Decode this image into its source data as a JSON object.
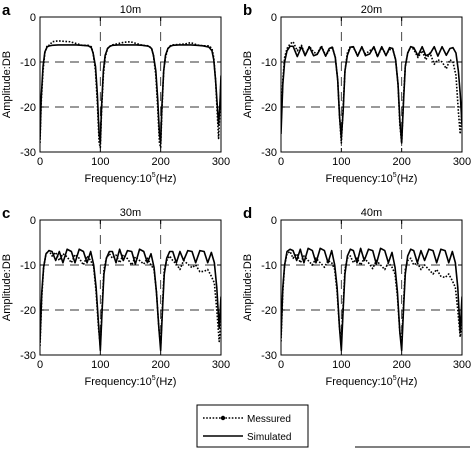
{
  "legend": {
    "items": [
      {
        "label": "Messured",
        "style": "dotted-marker"
      },
      {
        "label": "Simulated",
        "style": "solid"
      }
    ]
  },
  "chart_data": [
    {
      "panel": "a",
      "title": "10m",
      "type": "line",
      "xlabel": "Frequency:10^5(Hz)",
      "ylabel": "Amplitude:DB",
      "xlim": [
        0,
        300
      ],
      "ylim": [
        -30,
        0
      ],
      "xticks": [
        0,
        100,
        200,
        300
      ],
      "yticks": [
        -30,
        -20,
        -10,
        0
      ],
      "dashed_hlines": [
        -10,
        -20
      ],
      "dashed_vlines": [
        100,
        200
      ],
      "series": [
        {
          "name": "Messured",
          "x": [
            0,
            2,
            5,
            8,
            12,
            16,
            20,
            30,
            40,
            50,
            60,
            70,
            80,
            85,
            88,
            92,
            95,
            98,
            100,
            102,
            105,
            108,
            112,
            116,
            120,
            130,
            140,
            150,
            160,
            170,
            180,
            185,
            188,
            192,
            195,
            198,
            200,
            202,
            205,
            208,
            212,
            216,
            220,
            230,
            240,
            250,
            260,
            270,
            280,
            285,
            288,
            291,
            294,
            296,
            298,
            300
          ],
          "y": [
            -28,
            -19,
            -12,
            -8,
            -6.3,
            -6.3,
            -5.5,
            -5.3,
            -5.4,
            -5.5,
            -5.9,
            -6.3,
            -6.3,
            -6.6,
            -8,
            -12,
            -19,
            -28,
            -29,
            -21,
            -13,
            -9,
            -7,
            -6.5,
            -6.2,
            -5.9,
            -5.6,
            -5.5,
            -5.9,
            -6.3,
            -6.4,
            -7,
            -8.5,
            -13,
            -20,
            -28,
            -29,
            -21,
            -12,
            -9,
            -7,
            -6.4,
            -6.2,
            -6.1,
            -6,
            -5.7,
            -6.2,
            -6.4,
            -6.4,
            -7,
            -9,
            -14,
            -22,
            -27,
            -21,
            -14
          ]
        },
        {
          "name": "Simulated",
          "x": [
            0,
            2,
            5,
            8,
            12,
            16,
            20,
            30,
            40,
            50,
            60,
            70,
            80,
            85,
            88,
            92,
            95,
            98,
            100,
            102,
            105,
            108,
            112,
            116,
            120,
            130,
            140,
            150,
            160,
            170,
            180,
            185,
            188,
            192,
            195,
            198,
            200,
            202,
            205,
            208,
            212,
            216,
            220,
            230,
            240,
            250,
            260,
            270,
            280,
            285,
            288,
            291,
            294,
            296,
            298,
            300
          ],
          "y": [
            -27,
            -18,
            -11,
            -7.8,
            -6.6,
            -6.4,
            -6.3,
            -6.2,
            -6.2,
            -6.2,
            -6.2,
            -6.3,
            -6.4,
            -6.8,
            -8,
            -11,
            -17,
            -26,
            -28,
            -20,
            -12,
            -8.5,
            -7,
            -6.5,
            -6.3,
            -6.2,
            -6.2,
            -6.2,
            -6.2,
            -6.3,
            -6.5,
            -7,
            -8.5,
            -12,
            -18,
            -26,
            -28,
            -20,
            -12,
            -8.5,
            -7,
            -6.5,
            -6.3,
            -6.2,
            -6.2,
            -6.2,
            -6.3,
            -6.4,
            -6.7,
            -7.5,
            -9.5,
            -14,
            -20,
            -24,
            -20,
            -13
          ]
        }
      ]
    },
    {
      "panel": "b",
      "title": "20m",
      "type": "line",
      "xlabel": "Frequency:10^5(Hz)",
      "ylabel": "Amplitude:DB",
      "xlim": [
        0,
        300
      ],
      "ylim": [
        -30,
        0
      ],
      "xticks": [
        0,
        100,
        200,
        300
      ],
      "yticks": [
        -30,
        -20,
        -10,
        0
      ],
      "dashed_hlines": [
        -10,
        -20
      ],
      "dashed_vlines": [
        100,
        200
      ],
      "series": [
        {
          "name": "Messured",
          "x": [
            0,
            3,
            6,
            10,
            15,
            20,
            27,
            34,
            40,
            47,
            54,
            60,
            67,
            74,
            80,
            85,
            90,
            94,
            97,
            100,
            103,
            106,
            110,
            115,
            120,
            127,
            134,
            140,
            147,
            154,
            160,
            167,
            174,
            180,
            185,
            190,
            194,
            197,
            200,
            203,
            206,
            210,
            215,
            220,
            227,
            234,
            240,
            247,
            254,
            260,
            267,
            274,
            280,
            285,
            290,
            294,
            297,
            300
          ],
          "y": [
            -24,
            -14,
            -9,
            -7,
            -6,
            -5.5,
            -7.5,
            -6.3,
            -8.5,
            -6.5,
            -7.8,
            -8.2,
            -6.4,
            -8.6,
            -7.4,
            -6.6,
            -9,
            -14,
            -22,
            -28,
            -20,
            -12,
            -8,
            -6.5,
            -6.8,
            -8.5,
            -6.8,
            -8.2,
            -7.5,
            -6.8,
            -8.8,
            -6.8,
            -8.3,
            -7.3,
            -7,
            -9.5,
            -15,
            -24,
            -28,
            -18,
            -11,
            -8,
            -6.6,
            -7.2,
            -9,
            -7.5,
            -9.5,
            -8,
            -10.5,
            -9.5,
            -10,
            -11.5,
            -9.5,
            -10,
            -13,
            -21,
            -26,
            -20
          ]
        },
        {
          "name": "Simulated",
          "x": [
            0,
            3,
            6,
            10,
            15,
            20,
            27,
            34,
            40,
            47,
            54,
            60,
            67,
            74,
            80,
            85,
            90,
            94,
            97,
            100,
            103,
            106,
            110,
            115,
            120,
            127,
            134,
            140,
            147,
            154,
            160,
            167,
            174,
            180,
            185,
            190,
            194,
            197,
            200,
            203,
            206,
            210,
            215,
            220,
            227,
            234,
            240,
            247,
            254,
            260,
            267,
            274,
            280,
            285,
            290,
            294,
            297,
            300
          ],
          "y": [
            -26,
            -15,
            -10,
            -7.5,
            -6.5,
            -6.5,
            -8.8,
            -6.6,
            -8.6,
            -6.6,
            -8.6,
            -8.3,
            -6.6,
            -8.7,
            -7,
            -6.7,
            -9,
            -14,
            -22,
            -27,
            -21,
            -12,
            -8.5,
            -6.7,
            -6.6,
            -8.7,
            -6.6,
            -8.6,
            -8.2,
            -6.6,
            -8.8,
            -6.6,
            -8.6,
            -6.8,
            -7,
            -9.5,
            -15,
            -23,
            -28,
            -19,
            -11,
            -8,
            -6.6,
            -6.8,
            -8.6,
            -6.6,
            -8.6,
            -8.2,
            -6.6,
            -8.7,
            -6.6,
            -8.5,
            -7,
            -6.8,
            -8,
            -12,
            -17,
            -24
          ]
        }
      ]
    },
    {
      "panel": "c",
      "title": "30m",
      "type": "line",
      "xlabel": "Frequency:10^5(Hz)",
      "ylabel": "Amplitude:DB",
      "xlim": [
        0,
        300
      ],
      "ylim": [
        -30,
        0
      ],
      "xticks": [
        0,
        100,
        200,
        300
      ],
      "yticks": [
        -30,
        -20,
        -10,
        0
      ],
      "dashed_hlines": [
        -10,
        -20
      ],
      "dashed_vlines": [
        100,
        200
      ],
      "series": [
        {
          "name": "Messured",
          "x": [
            0,
            3,
            6,
            10,
            15,
            20,
            26,
            32,
            38,
            45,
            52,
            58,
            65,
            72,
            78,
            84,
            89,
            93,
            97,
            100,
            103,
            106,
            110,
            115,
            120,
            126,
            132,
            138,
            145,
            152,
            158,
            165,
            172,
            178,
            184,
            189,
            193,
            197,
            200,
            203,
            206,
            210,
            215,
            220,
            226,
            232,
            238,
            245,
            252,
            258,
            265,
            272,
            278,
            284,
            289,
            293,
            297,
            300
          ],
          "y": [
            -28,
            -17,
            -10.5,
            -7.5,
            -6.8,
            -8,
            -7.2,
            -9,
            -7.5,
            -8.2,
            -9.5,
            -7.7,
            -8.5,
            -10,
            -8,
            -9,
            -10.5,
            -16,
            -24,
            -28,
            -19,
            -11,
            -8.5,
            -7.5,
            -8.5,
            -7.8,
            -9.5,
            -7.7,
            -8.6,
            -10,
            -8.2,
            -9,
            -9.8,
            -8.5,
            -10,
            -11,
            -16,
            -24,
            -28,
            -19,
            -11,
            -9,
            -8,
            -9,
            -9.8,
            -11,
            -9,
            -9.8,
            -10.6,
            -10,
            -11.5,
            -11.4,
            -11,
            -12.5,
            -14,
            -20,
            -27,
            -22
          ]
        },
        {
          "name": "Simulated",
          "x": [
            0,
            3,
            6,
            10,
            15,
            20,
            26,
            32,
            38,
            45,
            52,
            58,
            65,
            72,
            78,
            84,
            89,
            93,
            97,
            100,
            103,
            106,
            110,
            115,
            120,
            126,
            132,
            138,
            145,
            152,
            158,
            165,
            172,
            178,
            184,
            189,
            193,
            197,
            200,
            203,
            206,
            210,
            215,
            220,
            226,
            232,
            238,
            245,
            252,
            258,
            265,
            272,
            278,
            284,
            289,
            293,
            297,
            300
          ],
          "y": [
            -27,
            -16,
            -10.5,
            -7.5,
            -6.8,
            -7,
            -9,
            -7,
            -9.5,
            -6.5,
            -7,
            -9.5,
            -6.5,
            -7,
            -9.5,
            -7,
            -10,
            -15,
            -23,
            -29,
            -20,
            -12,
            -8.5,
            -7,
            -7,
            -9.5,
            -6.5,
            -9,
            -6.8,
            -7,
            -9.8,
            -6.5,
            -7,
            -9.5,
            -7.5,
            -10.5,
            -16,
            -24,
            -29,
            -20,
            -12,
            -8.5,
            -7,
            -7,
            -9.5,
            -7,
            -9,
            -6.8,
            -7,
            -9.5,
            -6.8,
            -7,
            -9.5,
            -7.2,
            -9.5,
            -15,
            -24,
            -17
          ]
        }
      ]
    },
    {
      "panel": "d",
      "title": "40m",
      "type": "line",
      "xlabel": "Frequency:10^5(Hz)",
      "ylabel": "Amplitude:DB",
      "xlim": [
        0,
        300
      ],
      "ylim": [
        -30,
        0
      ],
      "xticks": [
        0,
        100,
        200,
        300
      ],
      "yticks": [
        -30,
        -20,
        -10,
        0
      ],
      "dashed_hlines": [
        -10,
        -20
      ],
      "dashed_vlines": [
        100,
        200
      ],
      "series": [
        {
          "name": "Messured",
          "x": [
            0,
            3,
            6,
            10,
            15,
            20,
            26,
            32,
            38,
            45,
            52,
            58,
            65,
            72,
            78,
            84,
            89,
            93,
            97,
            100,
            103,
            106,
            110,
            115,
            120,
            126,
            132,
            138,
            145,
            152,
            158,
            165,
            172,
            178,
            184,
            189,
            193,
            197,
            200,
            203,
            206,
            210,
            215,
            220,
            226,
            232,
            238,
            245,
            252,
            258,
            265,
            272,
            278,
            284,
            289,
            293,
            297,
            300
          ],
          "y": [
            -27,
            -16,
            -10,
            -7.5,
            -7,
            -8.5,
            -7.5,
            -9.5,
            -8,
            -9,
            -10,
            -8.5,
            -9.5,
            -10.5,
            -9,
            -9.5,
            -11,
            -16,
            -24,
            -27,
            -19,
            -11,
            -8.5,
            -8,
            -9.5,
            -8.5,
            -10,
            -8.5,
            -9.5,
            -10.8,
            -9,
            -10,
            -11,
            -9.5,
            -10.5,
            -12,
            -17,
            -25,
            -27,
            -19,
            -11,
            -9,
            -8.5,
            -10,
            -9.5,
            -11,
            -10,
            -11,
            -12,
            -11,
            -12.5,
            -12.8,
            -12,
            -13.5,
            -15,
            -20,
            -26,
            -22
          ]
        },
        {
          "name": "Simulated",
          "x": [
            0,
            3,
            6,
            10,
            15,
            20,
            26,
            32,
            38,
            45,
            52,
            58,
            65,
            72,
            78,
            84,
            89,
            93,
            97,
            100,
            103,
            106,
            110,
            115,
            120,
            126,
            132,
            138,
            145,
            152,
            158,
            165,
            172,
            178,
            184,
            189,
            193,
            197,
            200,
            203,
            206,
            210,
            215,
            220,
            226,
            232,
            238,
            245,
            252,
            258,
            265,
            272,
            278,
            284,
            289,
            293,
            297,
            300
          ],
          "y": [
            -26,
            -15,
            -10,
            -7,
            -6.5,
            -6.8,
            -9,
            -6.5,
            -9.5,
            -6.3,
            -6.8,
            -9.5,
            -6.3,
            -6.8,
            -9.5,
            -6.8,
            -10,
            -15,
            -24,
            -29,
            -20,
            -12,
            -8,
            -6.5,
            -6.8,
            -9.5,
            -6.3,
            -9,
            -6.5,
            -6.8,
            -9.8,
            -6.3,
            -6.8,
            -9.5,
            -7.2,
            -10.5,
            -16,
            -25,
            -29,
            -20,
            -12,
            -8,
            -6.5,
            -6.8,
            -9.5,
            -6.8,
            -9,
            -6.5,
            -6.8,
            -9.5,
            -6.5,
            -6.8,
            -9.5,
            -7,
            -9.5,
            -15,
            -25,
            -17
          ]
        }
      ]
    }
  ]
}
